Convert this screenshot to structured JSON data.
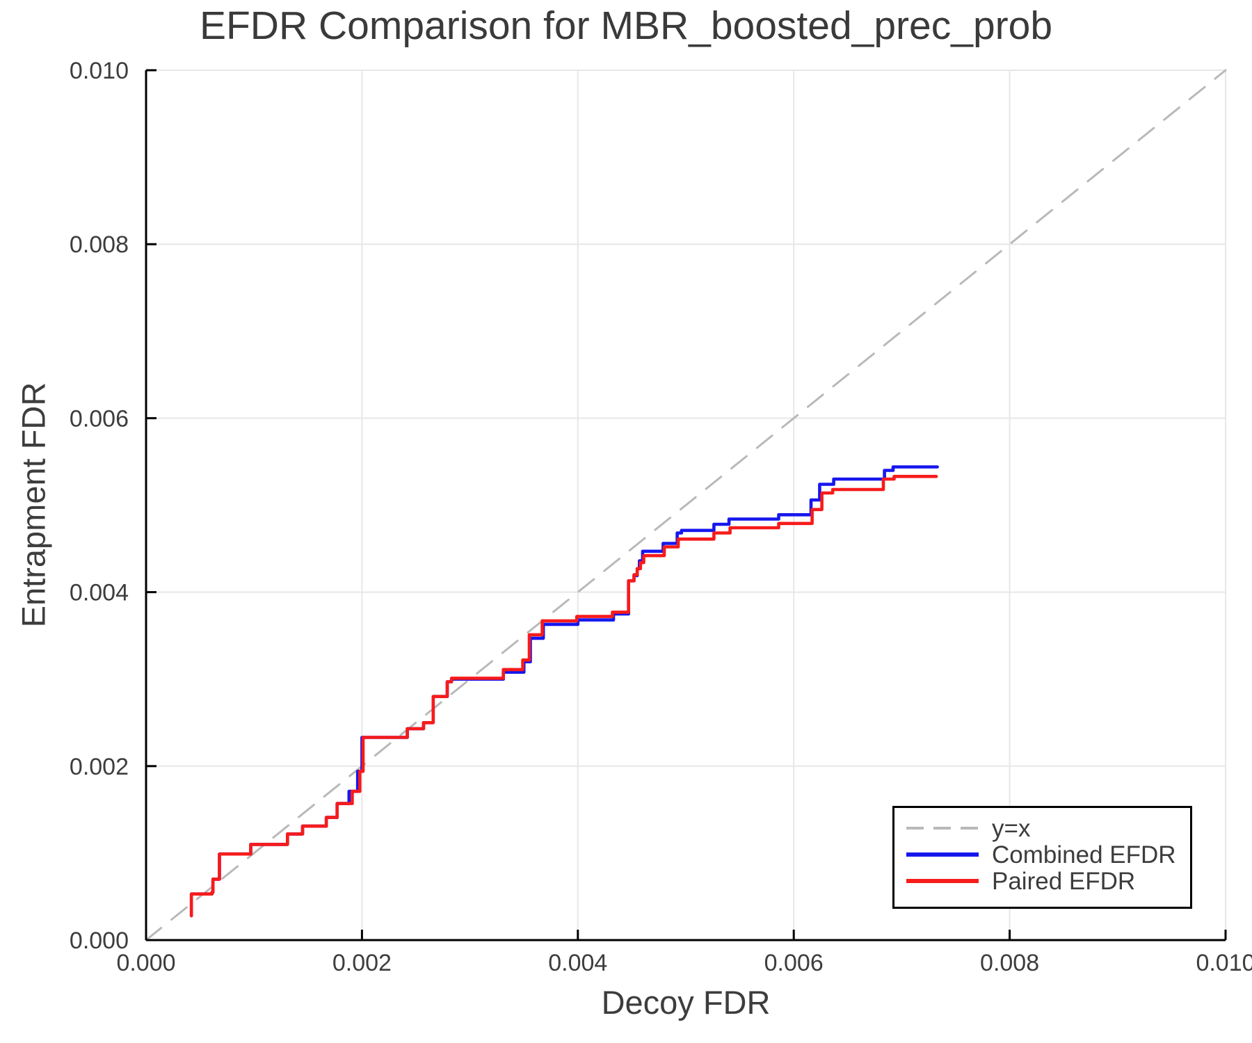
{
  "figure": {
    "background": "#ffffff",
    "text_color": "#3d3d3d",
    "spine_color": "#000000",
    "grid_color": "#e7e7e7"
  },
  "chart_data": {
    "type": "line",
    "title": "EFDR Comparison for MBR_boosted_prec_prob",
    "xlabel": "Decoy FDR",
    "ylabel": "Entrapment FDR",
    "xlim": [
      0.0,
      0.01
    ],
    "ylim": [
      0.0,
      0.01
    ],
    "grid": true,
    "xticks": [
      0.0,
      0.002,
      0.004,
      0.006,
      0.008,
      0.01
    ],
    "xtick_labels": [
      "0.000",
      "0.002",
      "0.004",
      "0.006",
      "0.008",
      "0.010"
    ],
    "yticks": [
      0.0,
      0.002,
      0.004,
      0.006,
      0.008,
      0.01
    ],
    "ytick_labels": [
      "0.000",
      "0.002",
      "0.004",
      "0.006",
      "0.008",
      "0.010"
    ],
    "legend": {
      "position": "lower right",
      "entries": [
        {
          "label": "y=x",
          "color": "#b9b9b9",
          "style": "dashed"
        },
        {
          "label": "Combined EFDR",
          "color": "#1717ee",
          "style": "solid"
        },
        {
          "label": "Paired EFDR",
          "color": "#f71b1b",
          "style": "solid"
        }
      ]
    },
    "series": [
      {
        "name": "y=x",
        "style": "dashed",
        "draw": "line",
        "color": "#b9b9b9",
        "points": [
          [
            0.0,
            0.0
          ],
          [
            0.01,
            0.01
          ]
        ]
      },
      {
        "name": "Combined EFDR",
        "style": "solid",
        "draw": "step",
        "color": "#1717ee",
        "points": [
          [
            0.00042,
            0.00028
          ],
          [
            0.00042,
            0.00053
          ],
          [
            0.00061,
            0.00055
          ],
          [
            0.00062,
            0.0007
          ],
          [
            0.00068,
            0.00099
          ],
          [
            0.00097,
            0.0011
          ],
          [
            0.00131,
            0.00122
          ],
          [
            0.00145,
            0.00131
          ],
          [
            0.00167,
            0.00141
          ],
          [
            0.00177,
            0.00157
          ],
          [
            0.00188,
            0.00171
          ],
          [
            0.00196,
            0.00194
          ],
          [
            0.002,
            0.00233
          ],
          [
            0.00242,
            0.00243
          ],
          [
            0.00257,
            0.0025
          ],
          [
            0.00266,
            0.0028
          ],
          [
            0.00279,
            0.00297
          ],
          [
            0.00283,
            0.003
          ],
          [
            0.00331,
            0.00308
          ],
          [
            0.0035,
            0.0032
          ],
          [
            0.00356,
            0.00347
          ],
          [
            0.00368,
            0.00363
          ],
          [
            0.004,
            0.00368
          ],
          [
            0.00433,
            0.00375
          ],
          [
            0.00447,
            0.00413
          ],
          [
            0.00452,
            0.00419
          ],
          [
            0.00455,
            0.00427
          ],
          [
            0.00457,
            0.00436
          ],
          [
            0.0046,
            0.00447
          ],
          [
            0.00479,
            0.00456
          ],
          [
            0.00492,
            0.00468
          ],
          [
            0.00496,
            0.00471
          ],
          [
            0.00526,
            0.00478
          ],
          [
            0.0054,
            0.00484
          ],
          [
            0.00586,
            0.00489
          ],
          [
            0.00616,
            0.00506
          ],
          [
            0.00624,
            0.00524
          ],
          [
            0.00637,
            0.0053
          ],
          [
            0.00684,
            0.0054
          ],
          [
            0.00692,
            0.00544
          ],
          [
            0.00733,
            0.00544
          ]
        ]
      },
      {
        "name": "Paired EFDR",
        "style": "solid",
        "draw": "step",
        "color": "#f71b1b",
        "points": [
          [
            0.00042,
            0.00028
          ],
          [
            0.00042,
            0.00053
          ],
          [
            0.00061,
            0.00055
          ],
          [
            0.00062,
            0.0007
          ],
          [
            0.00068,
            0.00099
          ],
          [
            0.00097,
            0.0011
          ],
          [
            0.00131,
            0.00122
          ],
          [
            0.00145,
            0.00131
          ],
          [
            0.00167,
            0.00141
          ],
          [
            0.00177,
            0.00157
          ],
          [
            0.00191,
            0.00171
          ],
          [
            0.00198,
            0.00194
          ],
          [
            0.00201,
            0.00233
          ],
          [
            0.00242,
            0.00243
          ],
          [
            0.00257,
            0.0025
          ],
          [
            0.00266,
            0.0028
          ],
          [
            0.00279,
            0.00297
          ],
          [
            0.00283,
            0.00301
          ],
          [
            0.00331,
            0.00311
          ],
          [
            0.00349,
            0.00322
          ],
          [
            0.00355,
            0.00351
          ],
          [
            0.00367,
            0.00367
          ],
          [
            0.00399,
            0.00372
          ],
          [
            0.00432,
            0.00377
          ],
          [
            0.00447,
            0.00413
          ],
          [
            0.00452,
            0.0042
          ],
          [
            0.00455,
            0.00427
          ],
          [
            0.00458,
            0.00434
          ],
          [
            0.00461,
            0.00442
          ],
          [
            0.0048,
            0.00452
          ],
          [
            0.00493,
            0.00461
          ],
          [
            0.00526,
            0.00468
          ],
          [
            0.00541,
            0.00474
          ],
          [
            0.00586,
            0.00479
          ],
          [
            0.00617,
            0.00495
          ],
          [
            0.00626,
            0.00514
          ],
          [
            0.00636,
            0.00518
          ],
          [
            0.00683,
            0.0053
          ],
          [
            0.00693,
            0.00533
          ],
          [
            0.00732,
            0.00533
          ]
        ]
      }
    ]
  }
}
